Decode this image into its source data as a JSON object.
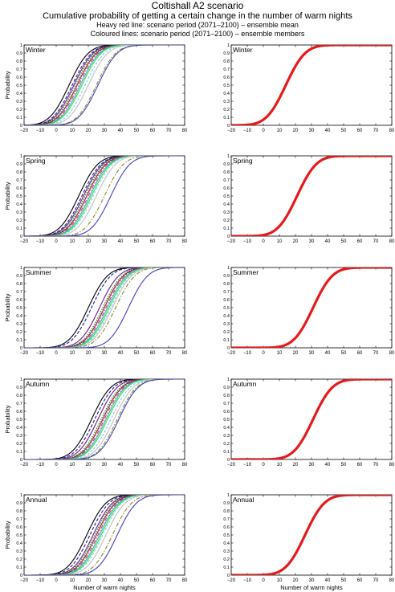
{
  "page": {
    "title": "Coltishall A2 scenario",
    "subtitle": "Cumulative probability of getting a certain change in the number of warm nights",
    "note1": "Heavy red line: scenario period (2071–2100) – ensemble mean",
    "note2": "Coloured lines: scenario period (2071–2100) – ensemble members"
  },
  "colors": {
    "mean": "#e8191c",
    "members": [
      "#000000",
      "#1f1f8f",
      "#6a1a8f",
      "#0a7f0a",
      "#8b1a1a",
      "#d92680",
      "#22b0c8",
      "#33e033",
      "#7ec8ff",
      "#c0c0c0",
      "#8a8a2a",
      "#4040c0"
    ]
  },
  "chart_data": [
    {
      "type": "line",
      "title": "Winter",
      "panel": "members",
      "xlabel": "",
      "ylabel": "Probability",
      "xlim": [
        -20,
        80
      ],
      "ylim": [
        0,
        1
      ],
      "xticks": [
        "−20",
        "−10",
        "0",
        "10",
        "20",
        "30",
        "40",
        "50",
        "60",
        "70",
        "80"
      ],
      "yticks": [
        "0",
        "0.1",
        "0.2",
        "0.3",
        "0.4",
        "0.5",
        "0.6",
        "0.7",
        "0.8",
        "0.9",
        "1"
      ],
      "series": [
        {
          "mu": 8
        },
        {
          "mu": 10
        },
        {
          "mu": 11
        },
        {
          "mu": 12
        },
        {
          "mu": 13
        },
        {
          "mu": 14
        },
        {
          "mu": 15
        },
        {
          "mu": 16
        },
        {
          "mu": 18
        },
        {
          "mu": 20
        },
        {
          "mu": 25
        },
        {
          "mu": 26
        }
      ]
    },
    {
      "type": "line",
      "title": "Winter",
      "panel": "mean",
      "xlabel": "",
      "ylabel": "",
      "xlim": [
        -20,
        80
      ],
      "ylim": [
        0,
        1
      ],
      "xticks": [
        "−20",
        "−10",
        "0",
        "10",
        "20",
        "30",
        "40",
        "50",
        "60",
        "70",
        "80"
      ],
      "yticks": [
        "0",
        "0.1",
        "0.2",
        "0.3",
        "0.4",
        "0.5",
        "0.6",
        "0.7",
        "0.8",
        "0.9",
        "1"
      ],
      "series": [
        {
          "mu": 14
        }
      ]
    },
    {
      "type": "line",
      "title": "Spring",
      "panel": "members",
      "xlabel": "",
      "ylabel": "Probability",
      "xlim": [
        -20,
        80
      ],
      "ylim": [
        0,
        1
      ],
      "xticks": [
        "−20",
        "−10",
        "0",
        "10",
        "20",
        "30",
        "40",
        "50",
        "60",
        "70",
        "80"
      ],
      "yticks": [
        "0",
        "0.1",
        "0.2",
        "0.3",
        "0.4",
        "0.5",
        "0.6",
        "0.7",
        "0.8",
        "0.9",
        "1"
      ],
      "series": [
        {
          "mu": 14
        },
        {
          "mu": 16
        },
        {
          "mu": 17
        },
        {
          "mu": 18
        },
        {
          "mu": 19
        },
        {
          "mu": 20
        },
        {
          "mu": 21
        },
        {
          "mu": 22
        },
        {
          "mu": 23
        },
        {
          "mu": 25
        },
        {
          "mu": 30
        },
        {
          "mu": 34
        }
      ]
    },
    {
      "type": "line",
      "title": "Spring",
      "panel": "mean",
      "xlabel": "",
      "ylabel": "",
      "xlim": [
        -20,
        80
      ],
      "ylim": [
        0,
        1
      ],
      "xticks": [
        "−20",
        "−10",
        "0",
        "10",
        "20",
        "30",
        "40",
        "50",
        "60",
        "70",
        "80"
      ],
      "yticks": [
        "0",
        "0.1",
        "0.2",
        "0.3",
        "0.4",
        "0.5",
        "0.6",
        "0.7",
        "0.8",
        "0.9",
        "1"
      ],
      "series": [
        {
          "mu": 21
        }
      ]
    },
    {
      "type": "line",
      "title": "Summer",
      "panel": "members",
      "xlabel": "",
      "ylabel": "Probability",
      "xlim": [
        -20,
        80
      ],
      "ylim": [
        0,
        1
      ],
      "xticks": [
        "−20",
        "−10",
        "0",
        "10",
        "20",
        "30",
        "40",
        "50",
        "60",
        "70",
        "80"
      ],
      "yticks": [
        "0",
        "0.1",
        "0.2",
        "0.3",
        "0.4",
        "0.5",
        "0.6",
        "0.7",
        "0.8",
        "0.9",
        "1"
      ],
      "series": [
        {
          "mu": 20
        },
        {
          "mu": 22
        },
        {
          "mu": 27
        },
        {
          "mu": 29
        },
        {
          "mu": 30
        },
        {
          "mu": 31
        },
        {
          "mu": 32
        },
        {
          "mu": 33
        },
        {
          "mu": 34
        },
        {
          "mu": 35
        },
        {
          "mu": 37
        },
        {
          "mu": 45
        }
      ]
    },
    {
      "type": "line",
      "title": "Summer",
      "panel": "mean",
      "xlabel": "",
      "ylabel": "",
      "xlim": [
        -20,
        80
      ],
      "ylim": [
        0,
        1
      ],
      "xticks": [
        "−20",
        "−10",
        "0",
        "10",
        "20",
        "30",
        "40",
        "50",
        "60",
        "70",
        "80"
      ],
      "yticks": [
        "0",
        "0.1",
        "0.2",
        "0.3",
        "0.4",
        "0.5",
        "0.6",
        "0.7",
        "0.8",
        "0.9",
        "1"
      ],
      "series": [
        {
          "mu": 31
        }
      ]
    },
    {
      "type": "line",
      "title": "Autumn",
      "panel": "members",
      "xlabel": "",
      "ylabel": "Probability",
      "xlim": [
        -20,
        80
      ],
      "ylim": [
        0,
        1
      ],
      "xticks": [
        "−20",
        "−10",
        "0",
        "10",
        "20",
        "30",
        "40",
        "50",
        "60",
        "70",
        "80"
      ],
      "yticks": [
        "0",
        "0.1",
        "0.2",
        "0.3",
        "0.4",
        "0.5",
        "0.6",
        "0.7",
        "0.8",
        "0.9",
        "1"
      ],
      "series": [
        {
          "mu": 22
        },
        {
          "mu": 24
        },
        {
          "mu": 26
        },
        {
          "mu": 28
        },
        {
          "mu": 29
        },
        {
          "mu": 30
        },
        {
          "mu": 31
        },
        {
          "mu": 32
        },
        {
          "mu": 34
        },
        {
          "mu": 36
        },
        {
          "mu": 38
        },
        {
          "mu": 39
        }
      ]
    },
    {
      "type": "line",
      "title": "Autumn",
      "panel": "mean",
      "xlabel": "",
      "ylabel": "",
      "xlim": [
        -20,
        80
      ],
      "ylim": [
        0,
        1
      ],
      "xticks": [
        "−20",
        "−10",
        "0",
        "10",
        "20",
        "30",
        "40",
        "50",
        "60",
        "70",
        "80"
      ],
      "yticks": [
        "0",
        "0.1",
        "0.2",
        "0.3",
        "0.4",
        "0.5",
        "0.6",
        "0.7",
        "0.8",
        "0.9",
        "1"
      ],
      "series": [
        {
          "mu": 31
        }
      ]
    },
    {
      "type": "line",
      "title": "Annual",
      "panel": "members",
      "xlabel": "Number of warm nights",
      "ylabel": "Probability",
      "xlim": [
        -20,
        80
      ],
      "ylim": [
        0,
        1
      ],
      "xticks": [
        "−20",
        "−10",
        "0",
        "10",
        "20",
        "30",
        "40",
        "50",
        "60",
        "70",
        "80"
      ],
      "yticks": [
        "0",
        "0.1",
        "0.2",
        "0.3",
        "0.4",
        "0.5",
        "0.6",
        "0.7",
        "0.8",
        "0.9",
        "1"
      ],
      "series": [
        {
          "mu": 19
        },
        {
          "mu": 21
        },
        {
          "mu": 23
        },
        {
          "mu": 24
        },
        {
          "mu": 25
        },
        {
          "mu": 26
        },
        {
          "mu": 27
        },
        {
          "mu": 28
        },
        {
          "mu": 29
        },
        {
          "mu": 31
        },
        {
          "mu": 35
        },
        {
          "mu": 38
        }
      ]
    },
    {
      "type": "line",
      "title": "Annual",
      "panel": "mean",
      "xlabel": "Number of warm nights",
      "ylabel": "",
      "xlim": [
        -20,
        80
      ],
      "ylim": [
        0,
        1
      ],
      "xticks": [
        "−20",
        "−10",
        "0",
        "10",
        "20",
        "30",
        "40",
        "50",
        "60",
        "70",
        "80"
      ],
      "yticks": [
        "0",
        "0.1",
        "0.2",
        "0.3",
        "0.4",
        "0.5",
        "0.6",
        "0.7",
        "0.8",
        "0.9",
        "1"
      ],
      "series": [
        {
          "mu": 26
        }
      ]
    }
  ]
}
